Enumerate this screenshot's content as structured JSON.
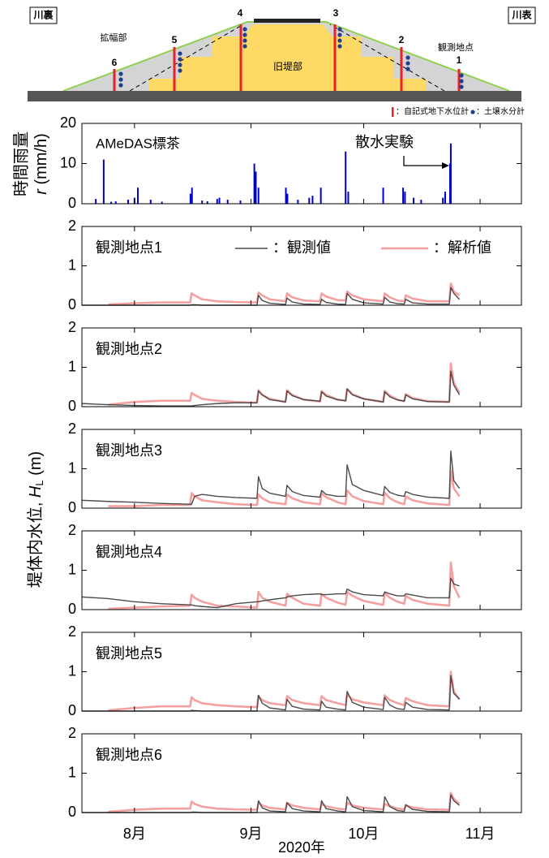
{
  "diagram": {
    "left_label": "川裏",
    "right_label": "川表",
    "widening_label": "拡幅部",
    "old_levee_label": "旧堤部",
    "site_label": "観測地点",
    "points": [
      "1",
      "2",
      "3",
      "4",
      "5",
      "6"
    ],
    "legend": [
      "：自記式地下水位計",
      "：土壌水分計"
    ]
  },
  "figure": {
    "ylabel": "堤体内水位, ",
    "ylabel_symbol": "H",
    "ylabel_subscript": "L",
    "ylabel_unit": " (m)",
    "xlabel": "2020年"
  },
  "chart_data": [
    {
      "type": "bar",
      "annotation": "AMeDAS標茶",
      "arrow_label": "散水実験",
      "ylabel": "時間雨量",
      "ylabel_symbol": "r",
      "ylabel_unit": " (mm/h)",
      "x": [
        203.7,
        205.8,
        207.8,
        209,
        212.3,
        214,
        214.9,
        218.3,
        221.3,
        228.9,
        229.3,
        232,
        233.4,
        236,
        236.6,
        238.8,
        242.2,
        245.9,
        246.3,
        247,
        254.3,
        254.7,
        257.5,
        260.5,
        261.4,
        263.6,
        270.2,
        270.9,
        280.2,
        285.5,
        286,
        288.3,
        290.3,
        296.1,
        296.7,
        298,
        298.2
      ],
      "values": [
        1.2,
        11,
        0.5,
        0.6,
        1,
        1.5,
        4,
        1,
        0.5,
        2.5,
        4,
        0.8,
        0.6,
        1.2,
        1.5,
        1,
        0.8,
        10,
        8,
        4,
        4,
        2.5,
        1,
        1.5,
        2,
        4,
        13,
        3,
        4,
        4,
        3,
        1.5,
        1,
        1.5,
        3,
        10,
        15
      ],
      "color": "#0000cc",
      "xlim": [
        200,
        317
      ],
      "xticks": [
        {
          "value": 214,
          "label": "8月"
        },
        {
          "value": 245,
          "label": "9月"
        },
        {
          "value": 275,
          "label": "10月"
        },
        {
          "value": 306,
          "label": "11月"
        }
      ],
      "ylim": [
        0,
        20
      ],
      "yticks": [
        0,
        10,
        20
      ]
    },
    {
      "type": "line",
      "title": "観測地点1",
      "legend": true,
      "x": [
        200,
        207,
        214,
        221,
        228.8,
        229.2,
        230,
        232,
        236,
        241,
        246.6,
        247,
        248,
        250,
        254.2,
        254.6,
        256,
        259,
        263.4,
        263.8,
        265,
        268,
        270.2,
        270.6,
        272,
        275,
        280.2,
        280.6,
        282,
        284,
        285.8,
        286.2,
        288,
        292,
        297.8,
        298.2,
        299,
        300.5
      ],
      "series": [
        {
          "name": "：観測値",
          "color": "#4a4a4a",
          "values": [
            0,
            0,
            0,
            0,
            0,
            0.01,
            0.01,
            0,
            0,
            0,
            0,
            0.25,
            0.12,
            0.05,
            0.02,
            0.18,
            0.08,
            0.03,
            0.02,
            0.15,
            0.07,
            0.03,
            0.02,
            0.3,
            0.15,
            0.06,
            0.03,
            0.2,
            0.08,
            0.04,
            0.03,
            0.15,
            0.06,
            0.03,
            0.03,
            0.45,
            0.3,
            0.15
          ]
        },
        {
          "name": "：解析値",
          "color": "#f4a0a0",
          "values": [
            null,
            0.02,
            0.05,
            0.07,
            0.07,
            0.3,
            0.25,
            0.15,
            0.1,
            0.08,
            0.07,
            0.32,
            0.25,
            0.15,
            0.1,
            0.3,
            0.2,
            0.12,
            0.1,
            0.3,
            0.22,
            0.13,
            0.12,
            0.35,
            0.25,
            0.15,
            0.1,
            0.3,
            0.2,
            0.12,
            0.1,
            0.25,
            0.17,
            0.1,
            0.1,
            0.55,
            0.35,
            0.25
          ]
        }
      ],
      "xlim": [
        200,
        317
      ],
      "xticks": [
        {
          "value": 214,
          "label": "8月"
        },
        {
          "value": 245,
          "label": "9月"
        },
        {
          "value": 275,
          "label": "10月"
        },
        {
          "value": 306,
          "label": "11月"
        }
      ],
      "ylim": [
        0,
        2
      ],
      "yticks": [
        0,
        1,
        2
      ]
    },
    {
      "type": "line",
      "title": "観測地点2",
      "x": [
        200,
        207,
        214,
        221,
        228.8,
        229.2,
        230,
        232,
        236,
        241,
        246.6,
        247,
        248,
        250,
        254.2,
        254.6,
        256,
        259,
        263.4,
        263.8,
        265,
        268,
        270.2,
        270.6,
        272,
        275,
        280.2,
        280.6,
        282,
        284,
        285.8,
        286.2,
        288,
        292,
        297.8,
        298.2,
        299,
        300.5
      ],
      "series": [
        {
          "color": "#4a4a4a",
          "values": [
            0.08,
            0.05,
            0.03,
            0.02,
            0.02,
            0.02,
            0.03,
            0.05,
            0.08,
            0.1,
            0.1,
            0.4,
            0.3,
            0.18,
            0.12,
            0.4,
            0.28,
            0.18,
            0.14,
            0.38,
            0.27,
            0.18,
            0.15,
            0.45,
            0.3,
            0.2,
            0.12,
            0.38,
            0.25,
            0.17,
            0.14,
            0.3,
            0.2,
            0.13,
            0.12,
            0.9,
            0.55,
            0.3
          ]
        },
        {
          "color": "#f4a0a0",
          "values": [
            null,
            0.05,
            0.12,
            0.15,
            0.15,
            0.35,
            0.3,
            0.2,
            0.15,
            0.12,
            0.1,
            0.42,
            0.3,
            0.2,
            0.12,
            0.42,
            0.3,
            0.18,
            0.13,
            0.4,
            0.3,
            0.18,
            0.15,
            0.45,
            0.32,
            0.2,
            0.12,
            0.4,
            0.28,
            0.18,
            0.14,
            0.32,
            0.22,
            0.14,
            0.12,
            1.1,
            0.6,
            0.35
          ]
        }
      ],
      "xlim": [
        200,
        317
      ],
      "xticks": [
        {
          "value": 214,
          "label": "8月"
        },
        {
          "value": 245,
          "label": "9月"
        },
        {
          "value": 275,
          "label": "10月"
        },
        {
          "value": 306,
          "label": "11月"
        }
      ],
      "ylim": [
        0,
        2
      ],
      "yticks": [
        0,
        1,
        2
      ]
    },
    {
      "type": "line",
      "title": "観測地点3",
      "x": [
        200,
        207,
        214,
        221,
        228.8,
        229.2,
        230,
        232,
        236,
        241,
        246.6,
        247,
        248,
        250,
        254.2,
        254.6,
        256,
        259,
        263.4,
        263.8,
        265,
        268,
        270.2,
        270.6,
        272,
        275,
        280.2,
        280.6,
        282,
        284,
        285.8,
        286.2,
        288,
        292,
        297.8,
        298.2,
        299,
        300.5
      ],
      "series": [
        {
          "color": "#4a4a4a",
          "values": [
            0.2,
            0.17,
            0.15,
            0.12,
            0.1,
            0.1,
            0.3,
            0.35,
            0.3,
            0.27,
            0.25,
            0.8,
            0.5,
            0.38,
            0.3,
            0.58,
            0.42,
            0.32,
            0.28,
            0.45,
            0.35,
            0.3,
            0.3,
            1.1,
            0.6,
            0.45,
            0.32,
            0.55,
            0.4,
            0.33,
            0.3,
            0.42,
            0.35,
            0.28,
            0.25,
            1.45,
            0.7,
            0.5
          ]
        },
        {
          "color": "#f4a0a0",
          "values": [
            null,
            0.05,
            0.05,
            0.08,
            0.08,
            0.38,
            0.3,
            0.2,
            0.15,
            0.1,
            0.08,
            0.35,
            0.25,
            0.15,
            0.1,
            0.35,
            0.25,
            0.15,
            0.1,
            0.38,
            0.28,
            0.15,
            0.1,
            0.45,
            0.3,
            0.18,
            0.1,
            0.4,
            0.25,
            0.15,
            0.1,
            0.3,
            0.2,
            0.12,
            0.08,
            0.95,
            0.5,
            0.3
          ]
        }
      ],
      "xlim": [
        200,
        317
      ],
      "xticks": [
        {
          "value": 214,
          "label": "8月"
        },
        {
          "value": 245,
          "label": "9月"
        },
        {
          "value": 275,
          "label": "10月"
        },
        {
          "value": 306,
          "label": "11月"
        }
      ],
      "ylim": [
        0,
        2
      ],
      "yticks": [
        0,
        1,
        2
      ]
    },
    {
      "type": "line",
      "title": "観測地点4",
      "x": [
        200,
        207,
        214,
        221,
        228.8,
        229.2,
        230,
        232,
        236,
        241,
        246.6,
        247,
        248,
        250,
        254.2,
        254.6,
        256,
        259,
        263.4,
        263.8,
        265,
        268,
        270.2,
        270.6,
        272,
        275,
        280.2,
        280.6,
        282,
        284,
        285.8,
        286.2,
        288,
        292,
        297.8,
        298.2,
        299,
        300.5
      ],
      "series": [
        {
          "color": "#4a4a4a",
          "values": [
            0.32,
            0.28,
            0.2,
            0.15,
            0.12,
            0.12,
            0.1,
            0.08,
            0.05,
            0.15,
            0.2,
            0.2,
            0.22,
            0.25,
            0.3,
            0.32,
            0.35,
            0.38,
            0.4,
            0.38,
            0.38,
            0.4,
            0.4,
            0.52,
            0.45,
            0.38,
            0.35,
            0.45,
            0.4,
            0.35,
            0.35,
            0.4,
            0.37,
            0.3,
            0.3,
            0.8,
            0.65,
            0.6
          ]
        },
        {
          "color": "#f4a0a0",
          "values": [
            null,
            0.02,
            0.05,
            0.08,
            0.1,
            0.38,
            0.3,
            0.2,
            0.1,
            0.08,
            0.05,
            0.45,
            0.3,
            0.2,
            0.1,
            0.4,
            0.3,
            0.15,
            0.1,
            0.4,
            0.3,
            0.18,
            0.12,
            0.45,
            0.35,
            0.22,
            0.12,
            0.42,
            0.3,
            0.2,
            0.15,
            0.35,
            0.25,
            0.15,
            0.1,
            1.2,
            0.6,
            0.3
          ]
        }
      ],
      "xlim": [
        200,
        317
      ],
      "xticks": [
        {
          "value": 214,
          "label": "8月"
        },
        {
          "value": 245,
          "label": "9月"
        },
        {
          "value": 275,
          "label": "10月"
        },
        {
          "value": 306,
          "label": "11月"
        }
      ],
      "ylim": [
        0,
        2
      ],
      "yticks": [
        0,
        1,
        2
      ]
    },
    {
      "type": "line",
      "title": "観測地点5",
      "x": [
        200,
        207,
        214,
        221,
        228.8,
        229.2,
        230,
        232,
        236,
        241,
        246.6,
        247,
        248,
        250,
        254.2,
        254.6,
        256,
        259,
        263.4,
        263.8,
        265,
        268,
        270.2,
        270.6,
        272,
        275,
        280.2,
        280.6,
        282,
        284,
        285.8,
        286.2,
        288,
        292,
        297.8,
        298.2,
        299,
        300.5
      ],
      "series": [
        {
          "color": "#4a4a4a",
          "values": [
            0,
            0,
            0,
            0,
            0,
            0.02,
            0.01,
            0,
            0,
            0,
            0,
            0.4,
            0.2,
            0.08,
            0.03,
            0.3,
            0.12,
            0.05,
            0.03,
            0.25,
            0.1,
            0.05,
            0.03,
            0.5,
            0.22,
            0.1,
            0.04,
            0.35,
            0.15,
            0.06,
            0.04,
            0.22,
            0.1,
            0.04,
            0.03,
            0.9,
            0.45,
            0.3
          ]
        },
        {
          "color": "#f4a0a0",
          "values": [
            null,
            0.02,
            0.08,
            0.12,
            0.12,
            0.35,
            0.28,
            0.2,
            0.15,
            0.12,
            0.1,
            0.38,
            0.28,
            0.2,
            0.15,
            0.38,
            0.28,
            0.2,
            0.15,
            0.38,
            0.28,
            0.2,
            0.15,
            0.42,
            0.3,
            0.22,
            0.15,
            0.4,
            0.28,
            0.2,
            0.15,
            0.33,
            0.25,
            0.15,
            0.12,
            1.0,
            0.5,
            0.3
          ]
        }
      ],
      "xlim": [
        200,
        317
      ],
      "xticks": [
        {
          "value": 214,
          "label": "8月"
        },
        {
          "value": 245,
          "label": "9月"
        },
        {
          "value": 275,
          "label": "10月"
        },
        {
          "value": 306,
          "label": "11月"
        }
      ],
      "ylim": [
        0,
        2
      ],
      "yticks": [
        0,
        1,
        2
      ]
    },
    {
      "type": "line",
      "title": "観測地点6",
      "x": [
        200,
        207,
        214,
        221,
        228.8,
        229.2,
        230,
        232,
        236,
        241,
        246.6,
        247,
        248,
        250,
        254.2,
        254.6,
        256,
        259,
        263.4,
        263.8,
        265,
        268,
        270.2,
        270.6,
        272,
        275,
        280.2,
        280.6,
        282,
        284,
        285.8,
        286.2,
        288,
        292,
        297.8,
        298.2,
        299,
        300.5
      ],
      "series": [
        {
          "color": "#4a4a4a",
          "values": [
            0,
            0,
            0,
            0,
            0,
            0.01,
            0.01,
            0,
            0,
            0,
            0,
            0.3,
            0.12,
            0.04,
            0.02,
            0.25,
            0.1,
            0.04,
            0.02,
            0.3,
            0.1,
            0.04,
            0.02,
            0.4,
            0.15,
            0.05,
            0.02,
            0.4,
            0.15,
            0.05,
            0.03,
            0.2,
            0.08,
            0.03,
            0.02,
            0.45,
            0.3,
            0.18
          ]
        },
        {
          "color": "#f4a0a0",
          "values": [
            null,
            0.02,
            0.07,
            0.1,
            0.1,
            0.28,
            0.22,
            0.15,
            0.1,
            0.08,
            0.07,
            0.25,
            0.18,
            0.12,
            0.08,
            0.25,
            0.18,
            0.12,
            0.08,
            0.22,
            0.16,
            0.1,
            0.08,
            0.25,
            0.18,
            0.12,
            0.08,
            0.22,
            0.16,
            0.1,
            0.08,
            0.18,
            0.13,
            0.08,
            0.07,
            0.5,
            0.35,
            0.22
          ]
        }
      ],
      "xlim": [
        200,
        317
      ],
      "xticks": [
        {
          "value": 214,
          "label": "8月"
        },
        {
          "value": 245,
          "label": "9月"
        },
        {
          "value": 275,
          "label": "10月"
        },
        {
          "value": 306,
          "label": "11月"
        }
      ],
      "ylim": [
        0,
        2
      ],
      "yticks": [
        0,
        1,
        2
      ]
    }
  ]
}
